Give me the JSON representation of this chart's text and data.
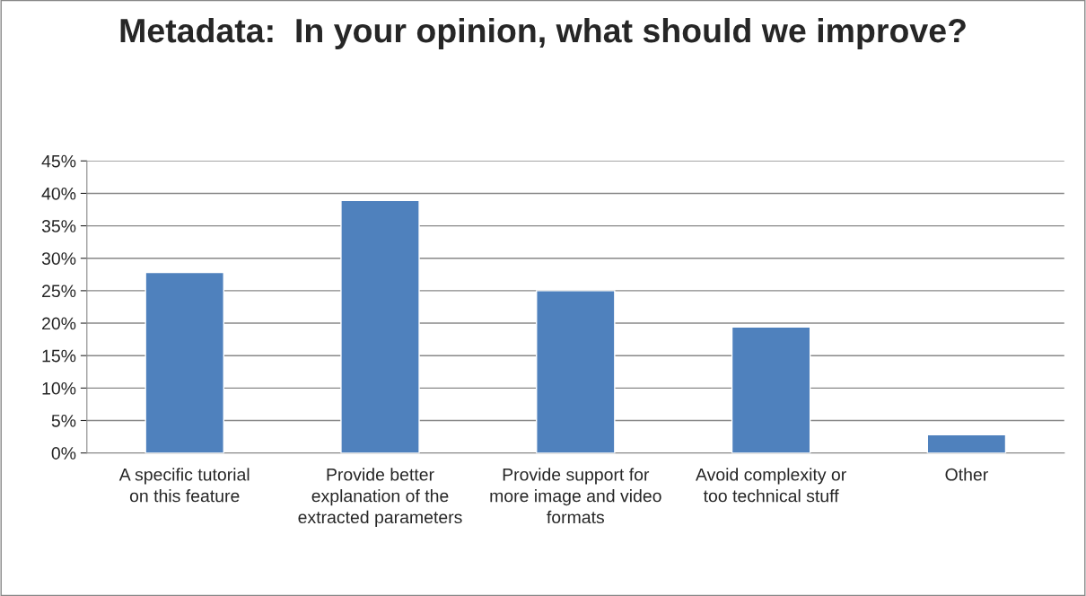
{
  "chart_data": {
    "type": "bar",
    "title": "Metadata:  In your opinion, what should we improve?",
    "categories": [
      "A specific tutorial on this feature",
      "Provide better explanation of the extracted parameters",
      "Provide support for more image and video formats",
      "Avoid complexity or too technical stuff",
      "Other"
    ],
    "values": [
      27.8,
      38.9,
      25.0,
      19.4,
      2.8
    ],
    "color": "#4f81bd",
    "ylim": [
      0,
      45
    ],
    "yticks": [
      {
        "value": 0,
        "label": "0%"
      },
      {
        "value": 5,
        "label": "5%"
      },
      {
        "value": 10,
        "label": "10%"
      },
      {
        "value": 15,
        "label": "15%"
      },
      {
        "value": 20,
        "label": "20%"
      },
      {
        "value": 25,
        "label": "25%"
      },
      {
        "value": 30,
        "label": "30%"
      },
      {
        "value": 35,
        "label": "35%"
      },
      {
        "value": 40,
        "label": "40%"
      },
      {
        "value": 45,
        "label": "45%"
      }
    ],
    "grid": "y",
    "legend": false
  }
}
